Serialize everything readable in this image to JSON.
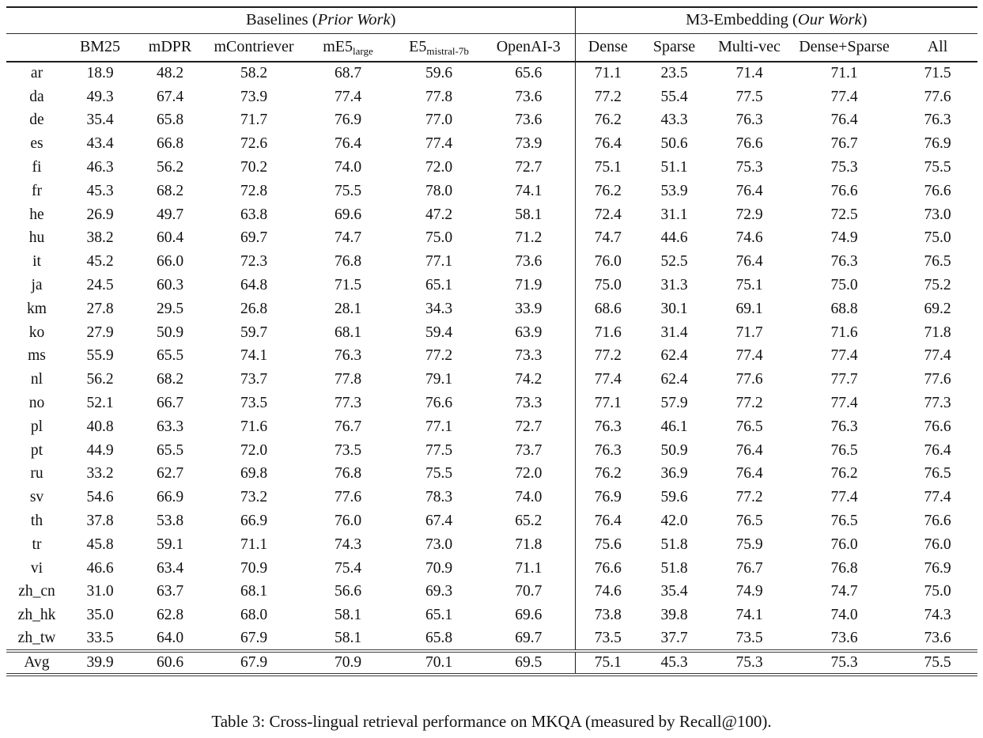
{
  "caption": "Table 3: Cross-lingual retrieval performance on MKQA (measured by Recall@100).",
  "table": {
    "groups": [
      {
        "prefix": "Baselines (",
        "italic": "Prior Work",
        "suffix": ")"
      },
      {
        "prefix": "M3-Embedding (",
        "italic": "Our Work",
        "suffix": ")"
      }
    ],
    "columns": [
      {
        "label": "BM25",
        "sub": ""
      },
      {
        "label": "mDPR",
        "sub": ""
      },
      {
        "label": "mContriever",
        "sub": ""
      },
      {
        "label": "mE5",
        "sub": "large"
      },
      {
        "label": "E5",
        "sub": "mistral-7b"
      },
      {
        "label": "OpenAI-3",
        "sub": ""
      },
      {
        "label": "Dense",
        "sub": ""
      },
      {
        "label": "Sparse",
        "sub": ""
      },
      {
        "label": "Multi-vec",
        "sub": ""
      },
      {
        "label": "Dense+Sparse",
        "sub": ""
      },
      {
        "label": "All",
        "sub": ""
      }
    ],
    "rows": [
      {
        "lang": "ar",
        "values": [
          "18.9",
          "48.2",
          "58.2",
          "68.7",
          "59.6",
          "65.6",
          "71.1",
          "23.5",
          "71.4",
          "71.1",
          "71.5"
        ],
        "bold": [
          10
        ]
      },
      {
        "lang": "da",
        "values": [
          "49.3",
          "67.4",
          "73.9",
          "77.4",
          "77.8",
          "73.6",
          "77.2",
          "55.4",
          "77.5",
          "77.4",
          "77.6"
        ],
        "bold": [
          4
        ]
      },
      {
        "lang": "de",
        "values": [
          "35.4",
          "65.8",
          "71.7",
          "76.9",
          "77.0",
          "73.6",
          "76.2",
          "43.3",
          "76.3",
          "76.4",
          "76.3"
        ],
        "bold": [
          4
        ]
      },
      {
        "lang": "es",
        "values": [
          "43.4",
          "66.8",
          "72.6",
          "76.4",
          "77.4",
          "73.9",
          "76.4",
          "50.6",
          "76.6",
          "76.7",
          "76.9"
        ],
        "bold": [
          4
        ]
      },
      {
        "lang": "fi",
        "values": [
          "46.3",
          "56.2",
          "70.2",
          "74.0",
          "72.0",
          "72.7",
          "75.1",
          "51.1",
          "75.3",
          "75.3",
          "75.5"
        ],
        "bold": [
          10
        ]
      },
      {
        "lang": "fr",
        "values": [
          "45.3",
          "68.2",
          "72.8",
          "75.5",
          "78.0",
          "74.1",
          "76.2",
          "53.9",
          "76.4",
          "76.6",
          "76.6"
        ],
        "bold": [
          4
        ]
      },
      {
        "lang": "he",
        "values": [
          "26.9",
          "49.7",
          "63.8",
          "69.6",
          "47.2",
          "58.1",
          "72.4",
          "31.1",
          "72.9",
          "72.5",
          "73.0"
        ],
        "bold": [
          10
        ]
      },
      {
        "lang": "hu",
        "values": [
          "38.2",
          "60.4",
          "69.7",
          "74.7",
          "75.0",
          "71.2",
          "74.7",
          "44.6",
          "74.6",
          "74.9",
          "75.0"
        ],
        "bold": [
          4,
          10
        ]
      },
      {
        "lang": "it",
        "values": [
          "45.2",
          "66.0",
          "72.3",
          "76.8",
          "77.1",
          "73.6",
          "76.0",
          "52.5",
          "76.4",
          "76.3",
          "76.5"
        ],
        "bold": [
          4
        ]
      },
      {
        "lang": "ja",
        "values": [
          "24.5",
          "60.3",
          "64.8",
          "71.5",
          "65.1",
          "71.9",
          "75.0",
          "31.3",
          "75.1",
          "75.0",
          "75.2"
        ],
        "bold": [
          10
        ]
      },
      {
        "lang": "km",
        "values": [
          "27.8",
          "29.5",
          "26.8",
          "28.1",
          "34.3",
          "33.9",
          "68.6",
          "30.1",
          "69.1",
          "68.8",
          "69.2"
        ],
        "bold": [
          10
        ]
      },
      {
        "lang": "ko",
        "values": [
          "27.9",
          "50.9",
          "59.7",
          "68.1",
          "59.4",
          "63.9",
          "71.6",
          "31.4",
          "71.7",
          "71.6",
          "71.8"
        ],
        "bold": [
          10
        ]
      },
      {
        "lang": "ms",
        "values": [
          "55.9",
          "65.5",
          "74.1",
          "76.3",
          "77.2",
          "73.3",
          "77.2",
          "62.4",
          "77.4",
          "77.4",
          "77.4"
        ],
        "bold": [
          8,
          9,
          10
        ]
      },
      {
        "lang": "nl",
        "values": [
          "56.2",
          "68.2",
          "73.7",
          "77.8",
          "79.1",
          "74.2",
          "77.4",
          "62.4",
          "77.6",
          "77.7",
          "77.6"
        ],
        "bold": [
          4
        ]
      },
      {
        "lang": "no",
        "values": [
          "52.1",
          "66.7",
          "73.5",
          "77.3",
          "76.6",
          "73.3",
          "77.1",
          "57.9",
          "77.2",
          "77.4",
          "77.3"
        ],
        "bold": [
          9
        ]
      },
      {
        "lang": "pl",
        "values": [
          "40.8",
          "63.3",
          "71.6",
          "76.7",
          "77.1",
          "72.7",
          "76.3",
          "46.1",
          "76.5",
          "76.3",
          "76.6"
        ],
        "bold": [
          4
        ]
      },
      {
        "lang": "pt",
        "values": [
          "44.9",
          "65.5",
          "72.0",
          "73.5",
          "77.5",
          "73.7",
          "76.3",
          "50.9",
          "76.4",
          "76.5",
          "76.4"
        ],
        "bold": [
          4
        ]
      },
      {
        "lang": "ru",
        "values": [
          "33.2",
          "62.7",
          "69.8",
          "76.8",
          "75.5",
          "72.0",
          "76.2",
          "36.9",
          "76.4",
          "76.2",
          "76.5"
        ],
        "bold": [
          3
        ]
      },
      {
        "lang": "sv",
        "values": [
          "54.6",
          "66.9",
          "73.2",
          "77.6",
          "78.3",
          "74.0",
          "76.9",
          "59.6",
          "77.2",
          "77.4",
          "77.4"
        ],
        "bold": [
          4
        ]
      },
      {
        "lang": "th",
        "values": [
          "37.8",
          "53.8",
          "66.9",
          "76.0",
          "67.4",
          "65.2",
          "76.4",
          "42.0",
          "76.5",
          "76.5",
          "76.6"
        ],
        "bold": [
          10
        ]
      },
      {
        "lang": "tr",
        "values": [
          "45.8",
          "59.1",
          "71.1",
          "74.3",
          "73.0",
          "71.8",
          "75.6",
          "51.8",
          "75.9",
          "76.0",
          "76.0"
        ],
        "bold": [
          9,
          10
        ]
      },
      {
        "lang": "vi",
        "values": [
          "46.6",
          "63.4",
          "70.9",
          "75.4",
          "70.9",
          "71.1",
          "76.6",
          "51.8",
          "76.7",
          "76.8",
          "76.9"
        ],
        "bold": [
          10
        ]
      },
      {
        "lang": "zh_cn",
        "values": [
          "31.0",
          "63.7",
          "68.1",
          "56.6",
          "69.3",
          "70.7",
          "74.6",
          "35.4",
          "74.9",
          "74.7",
          "75.0"
        ],
        "bold": [
          10
        ]
      },
      {
        "lang": "zh_hk",
        "values": [
          "35.0",
          "62.8",
          "68.0",
          "58.1",
          "65.1",
          "69.6",
          "73.8",
          "39.8",
          "74.1",
          "74.0",
          "74.3"
        ],
        "bold": [
          10
        ]
      },
      {
        "lang": "zh_tw",
        "values": [
          "33.5",
          "64.0",
          "67.9",
          "58.1",
          "65.8",
          "69.7",
          "73.5",
          "37.7",
          "73.5",
          "73.6",
          "73.6"
        ],
        "bold": [
          9,
          10
        ]
      },
      {
        "lang": "Avg",
        "values": [
          "39.9",
          "60.6",
          "67.9",
          "70.9",
          "70.1",
          "69.5",
          "75.1",
          "45.3",
          "75.3",
          "75.3",
          "75.5"
        ],
        "bold": [
          10
        ],
        "is_avg": true
      }
    ]
  }
}
